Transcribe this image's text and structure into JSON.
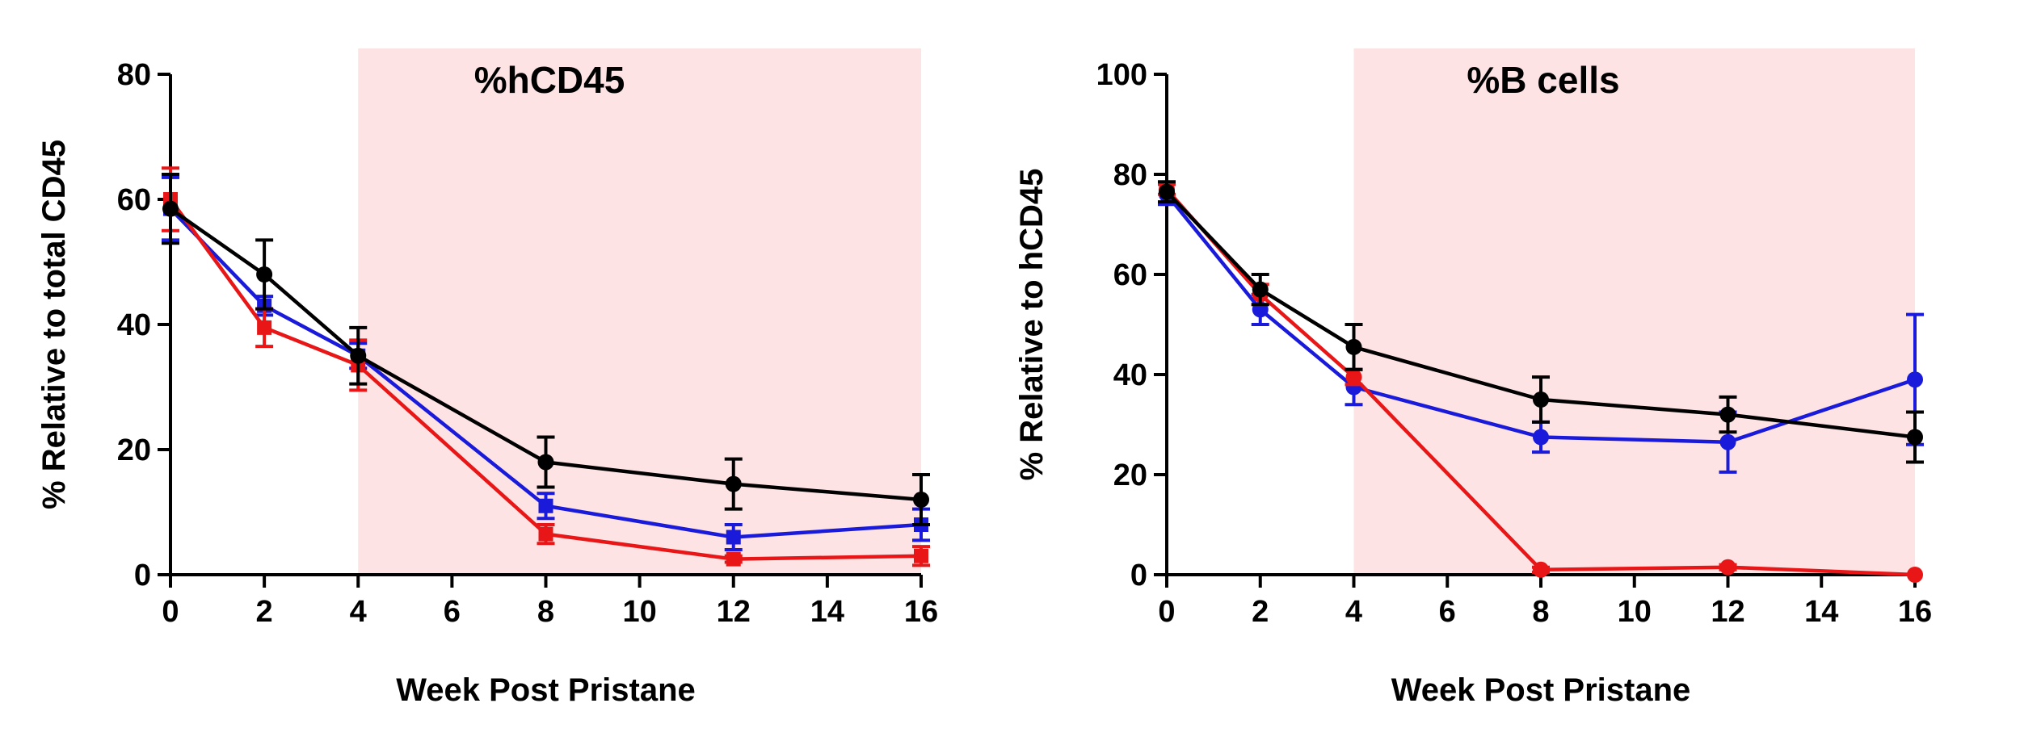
{
  "chart_data": [
    {
      "type": "line",
      "title": "%hCD45",
      "xlabel": "Week Post Pristane",
      "ylabel": "% Relative to total CD45",
      "xlim": [
        0,
        16
      ],
      "ylim": [
        0,
        80
      ],
      "xticks": [
        0,
        2,
        4,
        6,
        8,
        10,
        12,
        14,
        16
      ],
      "yticks": [
        0,
        20,
        40,
        60,
        80
      ],
      "shaded_region": {
        "x_from": 4,
        "x_to": 16,
        "color": "#fde3e3"
      },
      "series": [
        {
          "name": "blue",
          "color": "#1a1adb",
          "marker": "square",
          "x": [
            0,
            2,
            4,
            8,
            12,
            16
          ],
          "y": [
            58.5,
            43,
            35,
            11,
            6,
            8
          ],
          "err": [
            5,
            1.5,
            2,
            2,
            2,
            2.5
          ]
        },
        {
          "name": "red",
          "color": "#e81616",
          "marker": "square",
          "x": [
            0,
            2,
            4,
            8,
            12,
            16
          ],
          "y": [
            60,
            39.5,
            33.5,
            6.5,
            2.5,
            3
          ],
          "err": [
            5,
            3,
            4,
            1.5,
            0.5,
            1.5
          ]
        },
        {
          "name": "black",
          "color": "#000000",
          "marker": "circle",
          "x": [
            0,
            2,
            4,
            8,
            12,
            16
          ],
          "y": [
            58.5,
            48,
            35,
            18,
            14.5,
            12
          ],
          "err": [
            5.5,
            5.5,
            4.5,
            4,
            4,
            4
          ]
        }
      ]
    },
    {
      "type": "line",
      "title": "%B cells",
      "xlabel": "Week Post Pristane",
      "ylabel": "% Relative to hCD45",
      "xlim": [
        0,
        16
      ],
      "ylim": [
        0,
        100
      ],
      "xticks": [
        0,
        2,
        4,
        6,
        8,
        10,
        12,
        14,
        16
      ],
      "yticks": [
        0,
        20,
        40,
        60,
        80,
        100
      ],
      "shaded_region": {
        "x_from": 4,
        "x_to": 16,
        "color": "#fde3e3"
      },
      "series": [
        {
          "name": "blue",
          "color": "#1a1adb",
          "marker": "circle",
          "x": [
            0,
            2,
            4,
            8,
            12,
            16
          ],
          "y": [
            76,
            53,
            37.5,
            27.5,
            26.5,
            39
          ],
          "err": [
            2,
            3,
            3.5,
            3,
            6,
            13
          ]
        },
        {
          "name": "red",
          "color": "#e81616",
          "marker": "circle",
          "x": [
            0,
            2,
            4,
            8,
            12,
            16
          ],
          "y": [
            77,
            56,
            39.5,
            1,
            1.5,
            0
          ],
          "err": [
            1,
            2,
            1.5,
            0.5,
            0.5,
            0
          ]
        },
        {
          "name": "black",
          "color": "#000000",
          "marker": "circle",
          "x": [
            0,
            2,
            4,
            8,
            12,
            16
          ],
          "y": [
            76.5,
            57,
            45.5,
            35,
            32,
            27.5
          ],
          "err": [
            2,
            3,
            4.5,
            4.5,
            3.5,
            5
          ]
        }
      ]
    }
  ]
}
